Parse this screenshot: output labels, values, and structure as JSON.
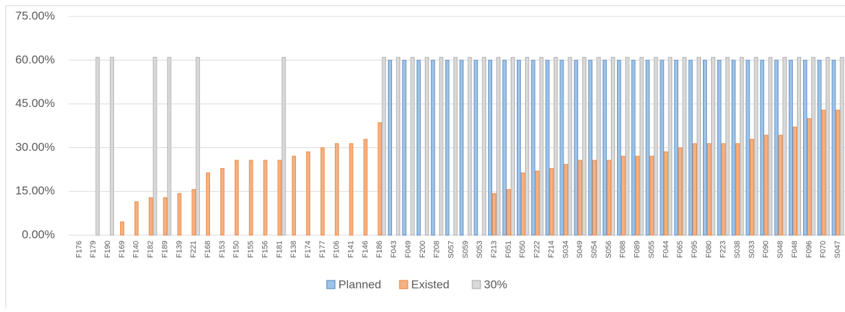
{
  "chart_data": {
    "type": "bar",
    "categories": [
      "F176",
      "F179",
      "F190",
      "F169",
      "F140",
      "F182",
      "F189",
      "F139",
      "F221",
      "F168",
      "F153",
      "F150",
      "F155",
      "F156",
      "F181",
      "F138",
      "F174",
      "F177",
      "F106",
      "F141",
      "F146",
      "F186",
      "F043",
      "F049",
      "F200",
      "F208",
      "S057",
      "S059",
      "S053",
      "F213",
      "F051",
      "F050",
      "F222",
      "F214",
      "S034",
      "S049",
      "S054",
      "S056",
      "F088",
      "F089",
      "S055",
      "F044",
      "F065",
      "F095",
      "F080",
      "F223",
      "S038",
      "S033",
      "F090",
      "S048",
      "F048",
      "F096",
      "F070",
      "S047"
    ],
    "series": [
      {
        "name": "Planned",
        "color": "#9dc3e6",
        "edgecolor": "#4f81bd",
        "values": [
          null,
          null,
          null,
          null,
          null,
          null,
          null,
          null,
          null,
          null,
          null,
          null,
          null,
          null,
          null,
          null,
          null,
          null,
          null,
          null,
          null,
          null,
          60,
          60,
          60,
          60,
          60,
          60,
          60,
          60,
          60,
          60,
          60,
          60,
          60,
          60,
          60,
          60,
          60,
          60,
          60,
          60,
          60,
          60,
          60,
          60,
          60,
          60,
          60,
          60,
          60,
          60,
          60,
          60
        ]
      },
      {
        "name": "Existed",
        "color": "#f4b183",
        "edgecolor": "#ed7d31",
        "values": [
          null,
          null,
          null,
          4.6,
          11.5,
          12.9,
          12.9,
          14.3,
          15.7,
          21.4,
          22.9,
          25.7,
          25.7,
          25.7,
          25.7,
          27.1,
          28.6,
          30,
          31.4,
          31.4,
          32.9,
          38.6,
          null,
          null,
          null,
          null,
          null,
          null,
          null,
          14.3,
          15.7,
          21.4,
          22,
          22.9,
          24.3,
          25.7,
          25.7,
          25.7,
          27.1,
          27.1,
          27.1,
          28.6,
          30,
          31.4,
          31.4,
          31.4,
          31.4,
          32.9,
          34.3,
          34.3,
          37.1,
          40,
          42.9,
          42.9
        ]
      },
      {
        "name": "30%",
        "color": "#d9d9d9",
        "edgecolor": "#a5a5a5",
        "values": [
          null,
          61,
          61,
          null,
          null,
          61,
          61,
          null,
          61,
          null,
          null,
          null,
          null,
          null,
          61,
          null,
          null,
          null,
          null,
          null,
          null,
          61,
          61,
          61,
          61,
          61,
          61,
          61,
          61,
          61,
          61,
          61,
          61,
          61,
          61,
          61,
          61,
          61,
          61,
          61,
          61,
          61,
          61,
          61,
          61,
          61,
          61,
          61,
          61,
          61,
          61,
          61,
          61,
          61
        ]
      }
    ],
    "ylim": [
      0,
      75
    ],
    "yticks": [
      {
        "value": 0,
        "label": "0.00%"
      },
      {
        "value": 15,
        "label": "15.00%"
      },
      {
        "value": 30,
        "label": "30.00%"
      },
      {
        "value": 45,
        "label": "45.00%"
      },
      {
        "value": 60,
        "label": "60.00%"
      },
      {
        "value": 75,
        "label": "75.00%"
      }
    ],
    "grid": true,
    "legend": "bottom"
  }
}
